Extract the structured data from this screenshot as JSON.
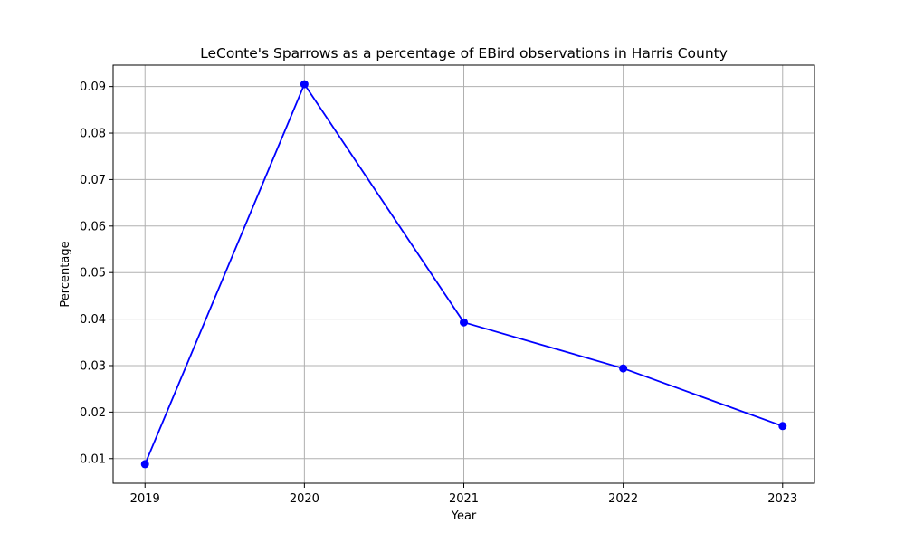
{
  "chart_data": {
    "type": "line",
    "title": "LeConte's Sparrows as a percentage of EBird observations in Harris County",
    "xlabel": "Year",
    "ylabel": "Percentage",
    "x": [
      2019,
      2020,
      2021,
      2022,
      2023
    ],
    "x_tick_labels": [
      "2019",
      "2020",
      "2021",
      "2022",
      "2023"
    ],
    "series": [
      {
        "values": [
          0.0088,
          0.0905,
          0.0393,
          0.0294,
          0.017
        ],
        "color": "#0000ff",
        "marker": "circle"
      }
    ],
    "xlim": [
      2018.8,
      2023.2
    ],
    "ylim": [
      0.0047,
      0.0946
    ],
    "y_ticks": [
      0.01,
      0.02,
      0.03,
      0.04,
      0.05,
      0.06,
      0.07,
      0.08,
      0.09
    ],
    "y_tick_labels": [
      "0.01",
      "0.02",
      "0.03",
      "0.04",
      "0.05",
      "0.06",
      "0.07",
      "0.08",
      "0.09"
    ],
    "grid": true,
    "legend": "none"
  }
}
